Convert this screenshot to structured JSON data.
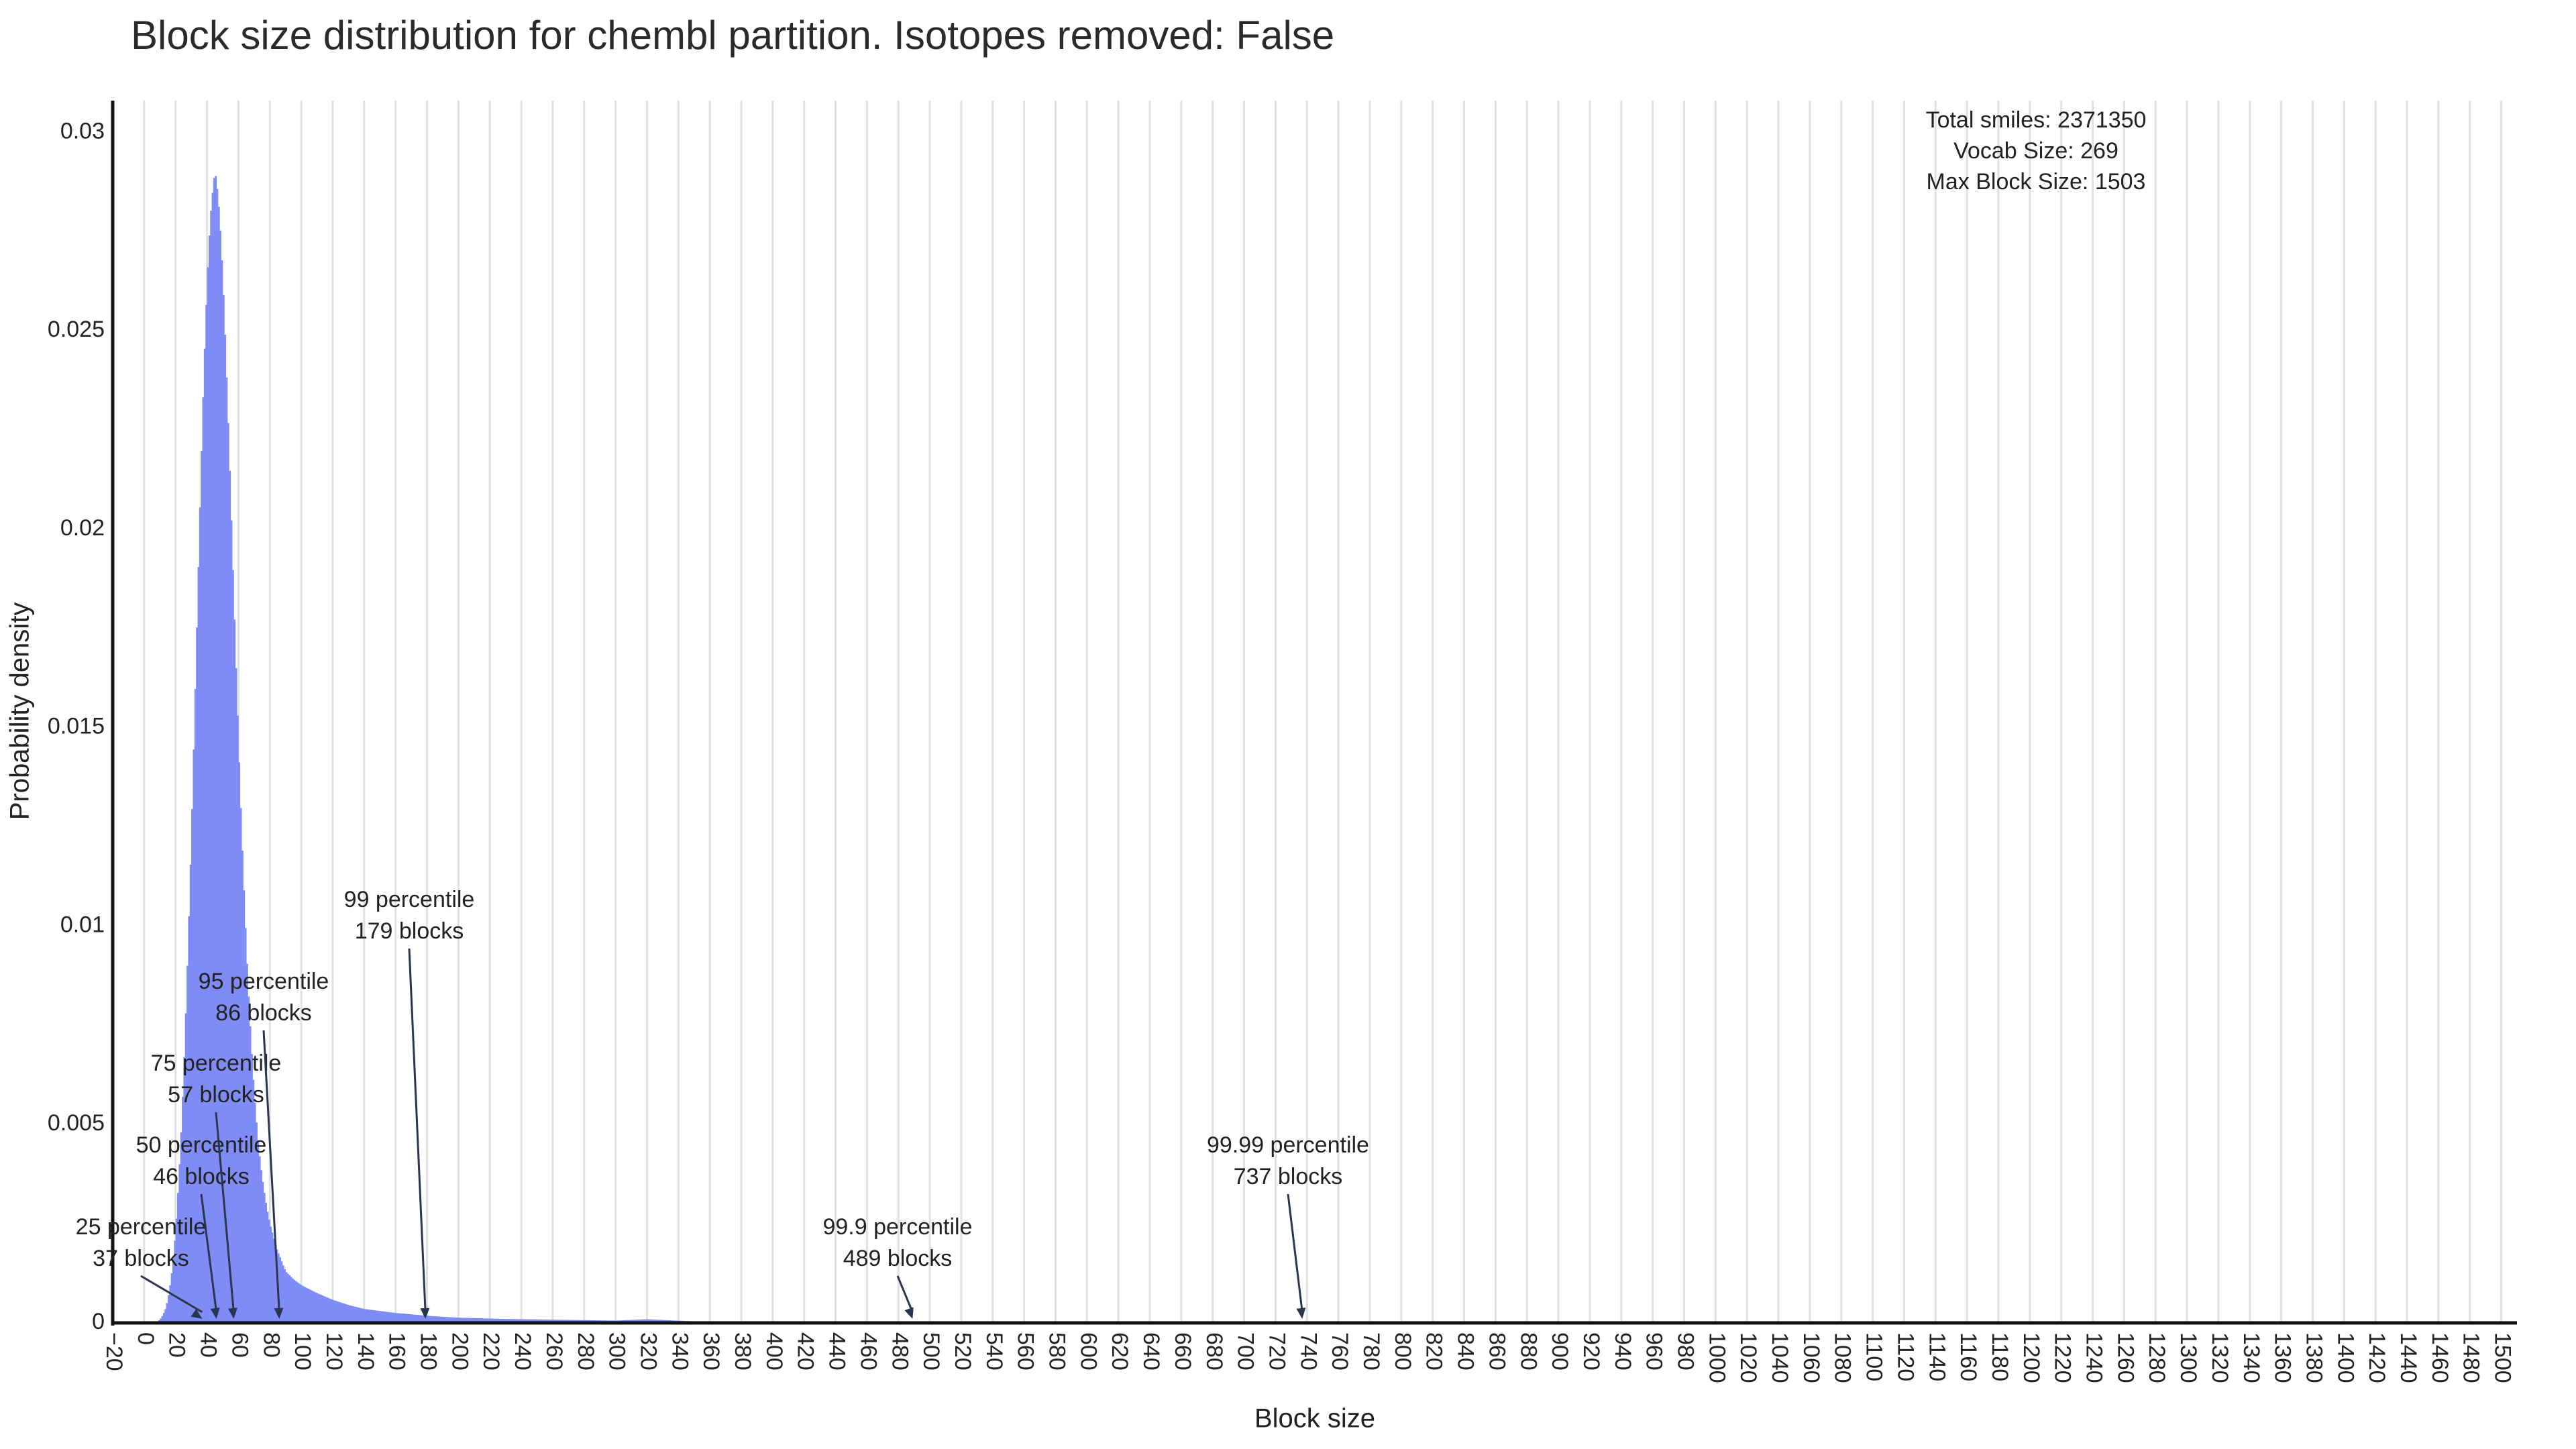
{
  "chart_data": {
    "type": "bar",
    "title": "Block size distribution for chembl partition. Isotopes removed: False",
    "xlabel": "Block size",
    "ylabel": "Probability density",
    "xlim": [
      -20,
      1510
    ],
    "ylim": [
      0,
      0.0308
    ],
    "grid": "vertical",
    "x_ticks": [
      -20,
      0,
      20,
      40,
      60,
      80,
      100,
      120,
      140,
      160,
      180,
      200,
      220,
      240,
      260,
      280,
      300,
      320,
      340,
      360,
      380,
      400,
      420,
      440,
      460,
      480,
      500,
      520,
      540,
      560,
      580,
      600,
      620,
      640,
      660,
      680,
      700,
      720,
      740,
      760,
      780,
      800,
      820,
      840,
      860,
      880,
      900,
      920,
      940,
      960,
      980,
      1000,
      1020,
      1040,
      1060,
      1080,
      1100,
      1120,
      1140,
      1160,
      1180,
      1200,
      1220,
      1240,
      1260,
      1280,
      1300,
      1320,
      1340,
      1360,
      1380,
      1400,
      1420,
      1440,
      1460,
      1480,
      1500
    ],
    "y_ticks": [
      {
        "value": 0,
        "label": "0"
      },
      {
        "value": 0.005,
        "label": "0.005"
      },
      {
        "value": 0.01,
        "label": "0.01"
      },
      {
        "value": 0.015,
        "label": "0.015"
      },
      {
        "value": 0.02,
        "label": "0.02"
      },
      {
        "value": 0.025,
        "label": "0.025"
      },
      {
        "value": 0.03,
        "label": "0.03"
      }
    ],
    "bar_color": "#7f8cf5",
    "bin_width": 1,
    "distribution": {
      "x": [
        5,
        8,
        10,
        12,
        14,
        16,
        18,
        20,
        22,
        24,
        26,
        28,
        30,
        32,
        34,
        36,
        38,
        40,
        42,
        44,
        45,
        46,
        48,
        50,
        52,
        54,
        56,
        58,
        60,
        62,
        64,
        66,
        68,
        70,
        72,
        74,
        76,
        78,
        80,
        82,
        84,
        86,
        88,
        90,
        95,
        100,
        110,
        120,
        130,
        140,
        160,
        180,
        200,
        230,
        260,
        300,
        320,
        350,
        400,
        450,
        500,
        600,
        737,
        800,
        1000,
        1200,
        1503
      ],
      "y": [
        0,
        3e-05,
        8e-05,
        0.0002,
        0.0004,
        0.0008,
        0.0014,
        0.0023,
        0.0036,
        0.0052,
        0.0072,
        0.0096,
        0.0122,
        0.0152,
        0.0183,
        0.0213,
        0.024,
        0.0262,
        0.0278,
        0.0287,
        0.029,
        0.0288,
        0.0279,
        0.0264,
        0.0244,
        0.0221,
        0.0196,
        0.0171,
        0.0147,
        0.0124,
        0.0104,
        0.0086,
        0.0071,
        0.0058,
        0.0048,
        0.004,
        0.0034,
        0.0029,
        0.0025,
        0.0022,
        0.0019,
        0.0017,
        0.0015,
        0.0013,
        0.0011,
        0.00095,
        0.00075,
        0.00058,
        0.00045,
        0.00035,
        0.00025,
        0.00018,
        0.00013,
        0.0001,
        8e-05,
        6e-05,
        9e-05,
        4e-05,
        3e-05,
        2e-05,
        1e-05,
        5e-06,
        2e-06,
        1e-06,
        0,
        0,
        0
      ]
    },
    "annotations": [
      {
        "x": 37,
        "lines": [
          "25 percentile",
          "37 blocks"
        ]
      },
      {
        "x": 46,
        "lines": [
          "50 percentile",
          "46 blocks"
        ]
      },
      {
        "x": 57,
        "lines": [
          "75 percentile",
          "57 blocks"
        ]
      },
      {
        "x": 86,
        "lines": [
          "95 percentile",
          "86 blocks"
        ]
      },
      {
        "x": 179,
        "lines": [
          "99 percentile",
          "179 blocks"
        ]
      },
      {
        "x": 489,
        "lines": [
          "99.9 percentile",
          "489 blocks"
        ]
      },
      {
        "x": 737,
        "lines": [
          "99.99 percentile",
          "737 blocks"
        ]
      }
    ],
    "info_box": [
      "Total smiles: 2371350",
      "Vocab Size: 269",
      "Max Block Size: 1503"
    ]
  }
}
